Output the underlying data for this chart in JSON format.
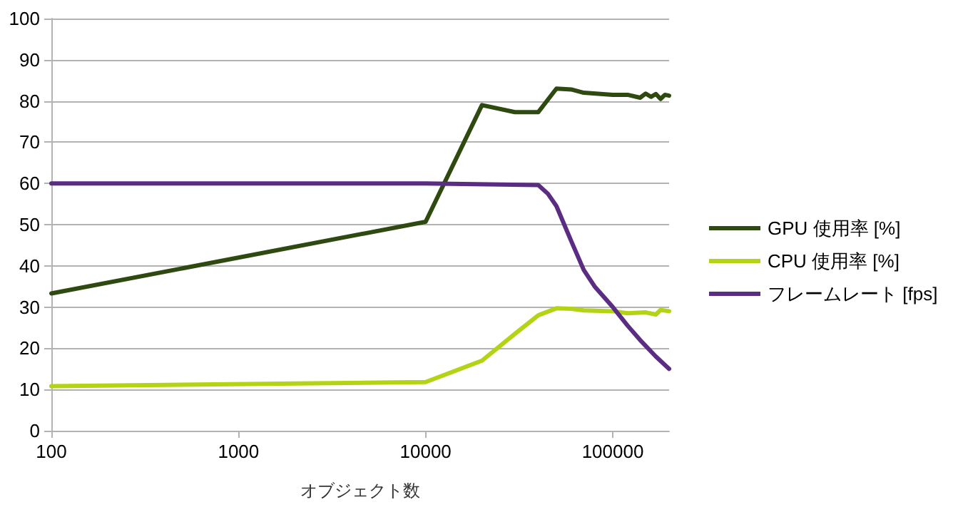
{
  "chart_data": {
    "type": "line",
    "xlabel": "オブジェクト数",
    "log": "x",
    "xlim": [
      100,
      200000
    ],
    "xticks": [
      100,
      1000,
      10000,
      100000
    ],
    "ylim": [
      0,
      100
    ],
    "yticks": [
      0,
      10,
      20,
      30,
      40,
      50,
      60,
      70,
      80,
      90,
      100
    ],
    "grid": "y",
    "legend": "right",
    "series": [
      {
        "name": "GPU 使用率 [%]",
        "color": "#2f4a10",
        "x": [
          100,
          10000,
          20000,
          30000,
          40000,
          50000,
          60000,
          70000,
          100000,
          120000,
          140000,
          150000,
          160000,
          170000,
          180000,
          190000,
          200000
        ],
        "values": [
          33.3,
          50.7,
          79,
          77.3,
          77.3,
          83,
          82.8,
          82,
          81.5,
          81.5,
          80.8,
          81.8,
          81,
          81.7,
          80.5,
          81.5,
          81.3
        ]
      },
      {
        "name": "CPU 使用率 [%]",
        "color": "#b3d414",
        "x": [
          100,
          10000,
          20000,
          30000,
          40000,
          50000,
          60000,
          70000,
          100000,
          120000,
          150000,
          170000,
          180000,
          200000
        ],
        "values": [
          10.8,
          11.8,
          17,
          23.5,
          28,
          29.7,
          29.6,
          29.2,
          29,
          28.5,
          28.7,
          28.2,
          29.3,
          29
        ]
      },
      {
        "name": "フレームレート [fps]",
        "color": "#5b2d82",
        "x": [
          100,
          10000,
          40000,
          45000,
          50000,
          60000,
          70000,
          80000,
          100000,
          120000,
          140000,
          170000,
          200000
        ],
        "values": [
          60,
          60,
          59.6,
          57.5,
          54.5,
          46,
          39,
          35,
          30,
          25.5,
          22,
          18,
          15
        ]
      }
    ]
  }
}
